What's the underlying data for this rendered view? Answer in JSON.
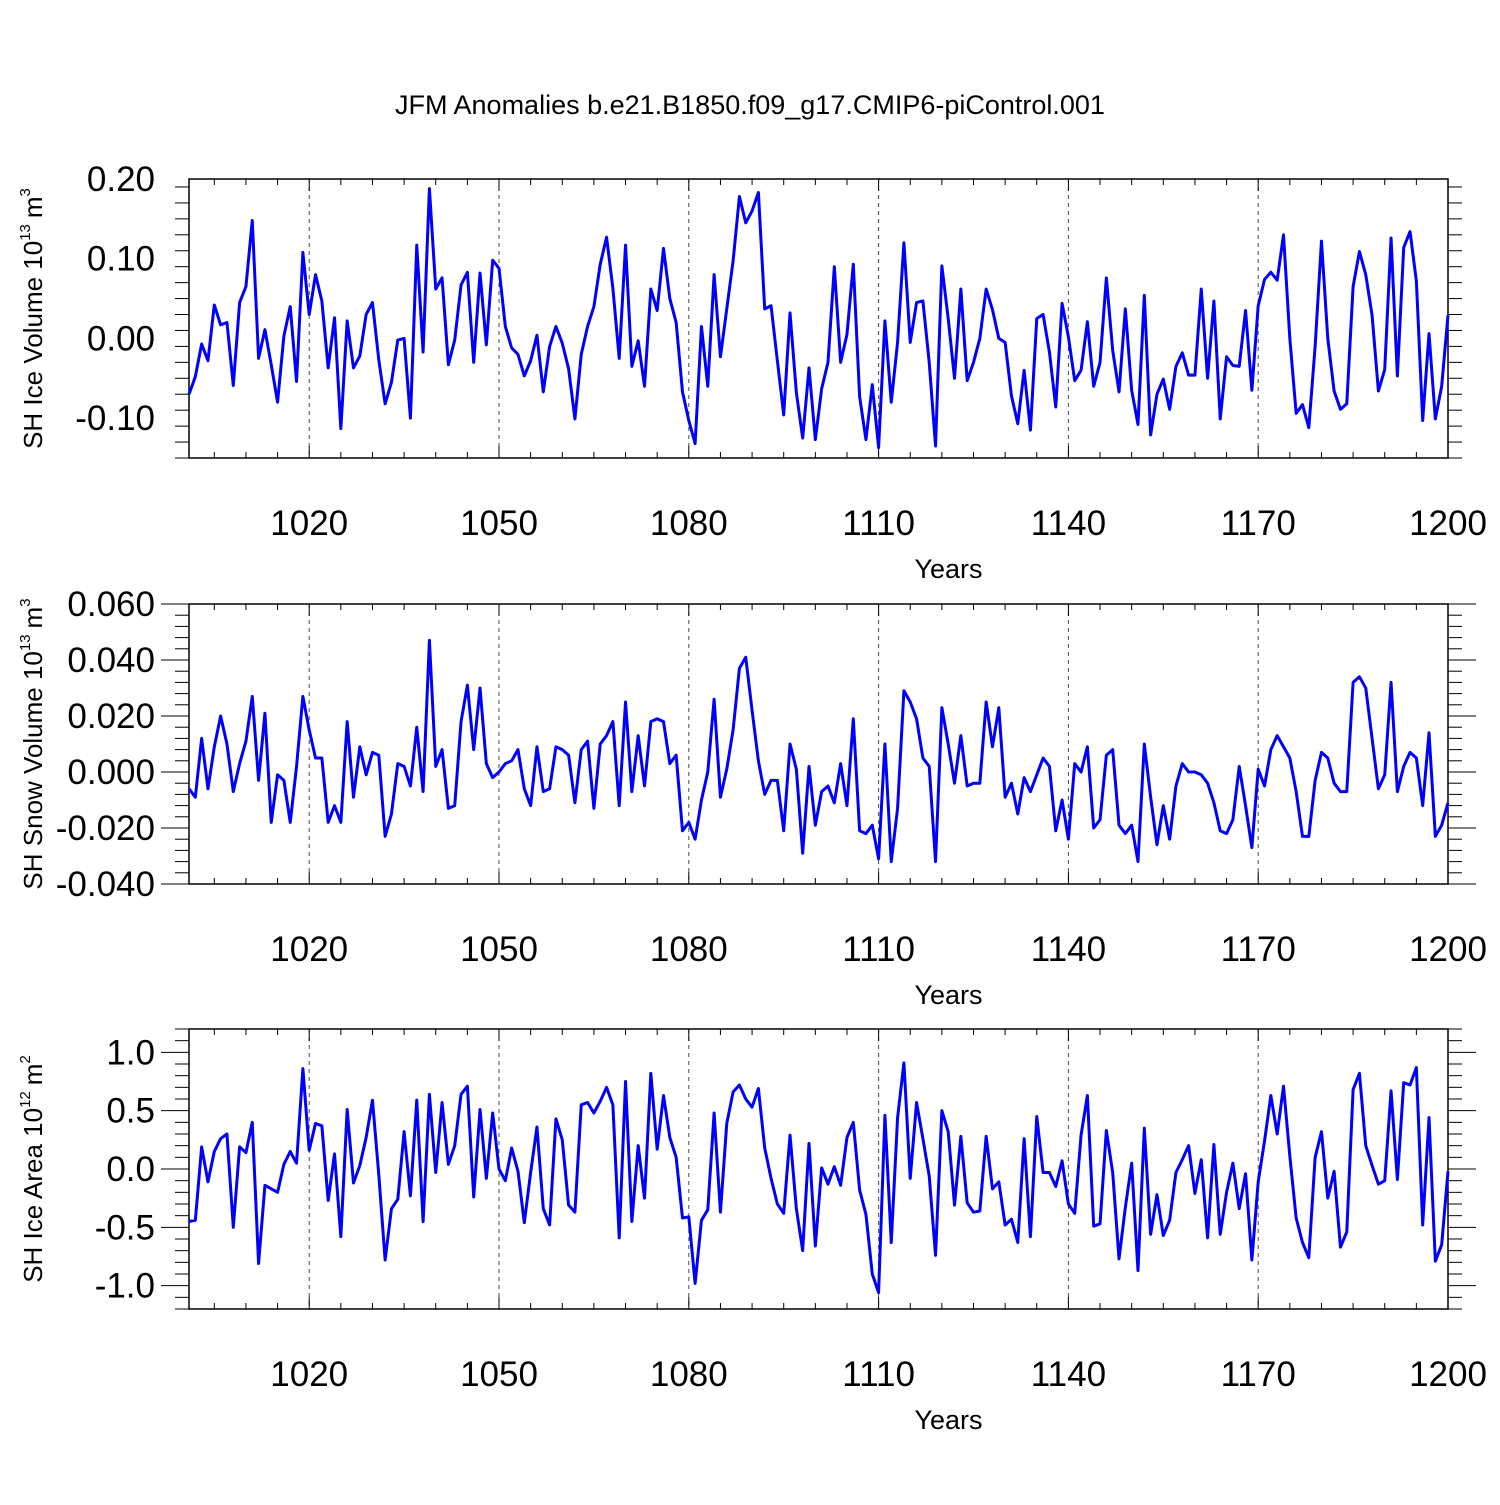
{
  "title": "JFM Anomalies b.e21.B1850.f09_g17.CMIP6-piControl.001",
  "colors": {
    "line": "#0000ff",
    "axis": "#000000",
    "grid": "#000000"
  },
  "chart_data": [
    {
      "type": "line",
      "ylabel": "SH Ice Volume 10",
      "ylabel_sup": "13",
      "ylabel_unit": "m",
      "ylabel_unit_sup": "3",
      "xlabel": "Years",
      "xlim": [
        1001,
        1200
      ],
      "ylim": [
        -0.15,
        0.2
      ],
      "x_ticks": [
        1020,
        1050,
        1080,
        1110,
        1140,
        1170,
        1200
      ],
      "x_tick_labels": [
        "1020",
        "1050",
        "1080",
        "1110",
        "1140",
        "1170",
        "1200"
      ],
      "y_ticks": [
        -0.1,
        0.0,
        0.1,
        0.2
      ],
      "y_tick_labels": [
        "-0.10",
        "0.00",
        "0.10",
        "0.20"
      ],
      "x_start": 1001,
      "series": [
        {
          "name": "SH Ice Volume",
          "values": [
            -0.07,
            -0.048,
            -0.007,
            -0.028,
            0.042,
            0.017,
            0.02,
            -0.059,
            0.045,
            0.065,
            0.148,
            -0.025,
            0.011,
            -0.033,
            -0.08,
            0.003,
            0.04,
            -0.054,
            0.108,
            0.03,
            0.08,
            0.047,
            -0.037,
            0.026,
            -0.113,
            0.022,
            -0.037,
            -0.022,
            0.03,
            0.045,
            -0.027,
            -0.082,
            -0.055,
            -0.002,
            0.0,
            -0.1,
            0.117,
            -0.017,
            0.188,
            0.062,
            0.076,
            -0.033,
            -0.002,
            0.067,
            0.083,
            -0.03,
            0.082,
            -0.008,
            0.098,
            0.088,
            0.015,
            -0.012,
            -0.02,
            -0.047,
            -0.028,
            0.004,
            -0.067,
            -0.01,
            0.015,
            -0.006,
            -0.038,
            -0.101,
            -0.02,
            0.015,
            0.04,
            0.093,
            0.127,
            0.063,
            -0.025,
            0.117,
            -0.035,
            -0.003,
            -0.06,
            0.062,
            0.035,
            0.113,
            0.05,
            0.02,
            -0.067,
            -0.103,
            -0.132,
            0.015,
            -0.06,
            0.08,
            -0.023,
            0.037,
            0.097,
            0.178,
            0.145,
            0.16,
            0.183,
            0.037,
            0.041,
            -0.028,
            -0.096,
            0.032,
            -0.068,
            -0.125,
            -0.037,
            -0.127,
            -0.063,
            -0.03,
            0.09,
            -0.03,
            0.005,
            0.093,
            -0.073,
            -0.127,
            -0.058,
            -0.137,
            0.022,
            -0.08,
            -0.005,
            0.12,
            -0.005,
            0.045,
            0.047,
            -0.03,
            -0.135,
            0.091,
            0.025,
            -0.05,
            0.062,
            -0.053,
            -0.03,
            0.0,
            0.062,
            0.036,
            0.0,
            -0.005,
            -0.072,
            -0.107,
            -0.04,
            -0.115,
            0.025,
            0.03,
            -0.017,
            -0.086,
            0.044,
            0.002,
            -0.053,
            -0.04,
            0.021,
            -0.06,
            -0.03,
            0.076,
            -0.015,
            -0.067,
            0.037,
            -0.065,
            -0.108,
            0.054,
            -0.121,
            -0.07,
            -0.051,
            -0.089,
            -0.035,
            -0.018,
            -0.046,
            -0.046,
            0.062,
            -0.05,
            0.047,
            -0.101,
            -0.023,
            -0.034,
            -0.035,
            0.035,
            -0.065,
            0.041,
            0.074,
            0.083,
            0.073,
            0.13,
            0.0,
            -0.094,
            -0.083,
            -0.112,
            -0.01,
            0.122,
            0.0,
            -0.066,
            -0.089,
            -0.082,
            0.065,
            0.109,
            0.08,
            0.029,
            -0.066,
            -0.039,
            0.126,
            -0.047,
            0.114,
            0.134,
            0.072,
            -0.103,
            0.006,
            -0.101,
            -0.06,
            0.029
          ]
        }
      ]
    },
    {
      "type": "line",
      "ylabel": "SH Snow Volume 10",
      "ylabel_sup": "13",
      "ylabel_unit": "m",
      "ylabel_unit_sup": "3",
      "xlabel": "Years",
      "xlim": [
        1001,
        1200
      ],
      "ylim": [
        -0.04,
        0.06
      ],
      "x_ticks": [
        1020,
        1050,
        1080,
        1110,
        1140,
        1170,
        1200
      ],
      "x_tick_labels": [
        "1020",
        "1050",
        "1080",
        "1110",
        "1140",
        "1170",
        "1200"
      ],
      "y_ticks": [
        -0.04,
        -0.02,
        0.0,
        0.02,
        0.04,
        0.06
      ],
      "y_tick_labels": [
        "-0.040",
        "-0.020",
        "0.000",
        "0.020",
        "0.040",
        "0.060"
      ],
      "x_start": 1001,
      "series": [
        {
          "name": "SH Snow Volume",
          "values": [
            -0.006,
            -0.009,
            0.012,
            -0.006,
            0.009,
            0.02,
            0.01,
            -0.007,
            0.003,
            0.011,
            0.027,
            -0.003,
            0.021,
            -0.018,
            -0.001,
            -0.003,
            -0.018,
            0.002,
            0.027,
            0.015,
            0.005,
            0.005,
            -0.018,
            -0.012,
            -0.018,
            0.018,
            -0.009,
            0.009,
            -0.001,
            0.007,
            0.006,
            -0.023,
            -0.015,
            0.003,
            0.002,
            -0.005,
            0.016,
            -0.007,
            0.047,
            0.002,
            0.008,
            -0.013,
            -0.012,
            0.018,
            0.031,
            0.008,
            0.03,
            0.003,
            -0.002,
            0.0,
            0.003,
            0.004,
            0.008,
            -0.006,
            -0.012,
            0.009,
            -0.007,
            -0.006,
            0.009,
            0.008,
            0.006,
            -0.011,
            0.008,
            0.011,
            -0.013,
            0.01,
            0.013,
            0.018,
            -0.012,
            0.025,
            -0.007,
            0.013,
            -0.005,
            0.018,
            0.019,
            0.018,
            0.003,
            0.006,
            -0.021,
            -0.018,
            -0.024,
            -0.01,
            0.0,
            0.026,
            -0.009,
            0.001,
            0.015,
            0.037,
            0.041,
            0.022,
            0.004,
            -0.008,
            -0.003,
            -0.003,
            -0.021,
            0.01,
            0.001,
            -0.029,
            0.002,
            -0.019,
            -0.007,
            -0.005,
            -0.011,
            0.003,
            -0.012,
            0.019,
            -0.021,
            -0.022,
            -0.019,
            -0.031,
            0.01,
            -0.032,
            -0.013,
            0.029,
            0.025,
            0.019,
            0.005,
            0.002,
            -0.032,
            0.023,
            0.01,
            -0.004,
            0.013,
            -0.005,
            -0.004,
            -0.004,
            0.025,
            0.009,
            0.023,
            -0.009,
            -0.004,
            -0.015,
            -0.002,
            -0.007,
            -0.001,
            0.005,
            0.002,
            -0.021,
            -0.01,
            -0.024,
            0.003,
            0.0,
            0.009,
            -0.02,
            -0.017,
            0.006,
            0.008,
            -0.019,
            -0.022,
            -0.019,
            -0.032,
            0.01,
            -0.009,
            -0.026,
            -0.012,
            -0.024,
            -0.005,
            0.003,
            0.0,
            0.0,
            -0.001,
            -0.004,
            -0.011,
            -0.021,
            -0.022,
            -0.017,
            0.002,
            -0.012,
            -0.027,
            0.001,
            -0.005,
            0.008,
            0.013,
            0.009,
            0.005,
            -0.007,
            -0.023,
            -0.023,
            -0.003,
            0.007,
            0.005,
            -0.004,
            -0.007,
            -0.007,
            0.032,
            0.034,
            0.03,
            0.012,
            -0.006,
            -0.001,
            0.032,
            -0.007,
            0.002,
            0.007,
            0.005,
            -0.012,
            0.014,
            -0.023,
            -0.019,
            -0.011
          ]
        }
      ]
    },
    {
      "type": "line",
      "ylabel": "SH Ice Area 10",
      "ylabel_sup": "12",
      "ylabel_unit": "m",
      "ylabel_unit_sup": "2",
      "xlabel": "Years",
      "xlim": [
        1001,
        1200
      ],
      "ylim": [
        -1.2,
        1.2
      ],
      "x_ticks": [
        1020,
        1050,
        1080,
        1110,
        1140,
        1170,
        1200
      ],
      "x_tick_labels": [
        "1020",
        "1050",
        "1080",
        "1110",
        "1140",
        "1170",
        "1200"
      ],
      "y_ticks": [
        -1.0,
        -0.5,
        0.0,
        0.5,
        1.0
      ],
      "y_tick_labels": [
        "-1.0",
        "-0.5",
        "0.0",
        "0.5",
        "1.0"
      ],
      "x_start": 1001,
      "series": [
        {
          "name": "SH Ice Area",
          "values": [
            -0.45,
            -0.44,
            0.19,
            -0.11,
            0.15,
            0.26,
            0.3,
            -0.5,
            0.19,
            0.14,
            0.4,
            -0.81,
            -0.14,
            -0.17,
            -0.2,
            0.04,
            0.15,
            0.05,
            0.86,
            0.16,
            0.39,
            0.37,
            -0.27,
            0.13,
            -0.58,
            0.51,
            -0.12,
            0.03,
            0.27,
            0.59,
            -0.05,
            -0.78,
            -0.34,
            -0.26,
            0.32,
            -0.23,
            0.59,
            -0.45,
            0.64,
            -0.03,
            0.57,
            0.04,
            0.2,
            0.64,
            0.71,
            -0.24,
            0.51,
            -0.08,
            0.48,
            0.0,
            -0.1,
            0.18,
            -0.02,
            -0.46,
            -0.03,
            0.36,
            -0.34,
            -0.48,
            0.43,
            0.25,
            -0.31,
            -0.37,
            0.55,
            0.57,
            0.48,
            0.58,
            0.7,
            0.55,
            -0.59,
            0.75,
            -0.45,
            0.2,
            -0.25,
            0.82,
            0.17,
            0.63,
            0.27,
            0.1,
            -0.42,
            -0.41,
            -0.98,
            -0.44,
            -0.35,
            0.48,
            -0.37,
            0.39,
            0.66,
            0.72,
            0.6,
            0.53,
            0.69,
            0.18,
            -0.08,
            -0.3,
            -0.38,
            0.29,
            -0.34,
            -0.7,
            0.22,
            -0.66,
            0.01,
            -0.13,
            0.02,
            -0.14,
            0.27,
            0.4,
            -0.18,
            -0.39,
            -0.9,
            -1.06,
            0.46,
            -0.63,
            0.44,
            0.91,
            -0.08,
            0.57,
            0.26,
            -0.06,
            -0.74,
            0.5,
            0.32,
            -0.31,
            0.28,
            -0.29,
            -0.37,
            -0.36,
            0.28,
            -0.17,
            -0.11,
            -0.48,
            -0.43,
            -0.63,
            0.26,
            -0.58,
            0.45,
            -0.03,
            -0.03,
            -0.15,
            0.07,
            -0.3,
            -0.38,
            0.29,
            0.63,
            -0.49,
            -0.47,
            0.33,
            -0.03,
            -0.77,
            -0.33,
            0.05,
            -0.87,
            0.35,
            -0.56,
            -0.22,
            -0.57,
            -0.44,
            -0.03,
            0.08,
            0.2,
            -0.21,
            0.08,
            -0.59,
            0.21,
            -0.56,
            -0.2,
            0.05,
            -0.34,
            -0.04,
            -0.78,
            -0.11,
            0.24,
            0.63,
            0.3,
            0.71,
            0.11,
            -0.42,
            -0.63,
            -0.76,
            0.1,
            0.32,
            -0.25,
            -0.02,
            -0.67,
            -0.54,
            0.68,
            0.82,
            0.2,
            0.03,
            -0.13,
            -0.1,
            0.67,
            -0.09,
            0.74,
            0.72,
            0.87,
            -0.48,
            0.44,
            -0.79,
            -0.65,
            -0.02
          ]
        }
      ]
    }
  ]
}
